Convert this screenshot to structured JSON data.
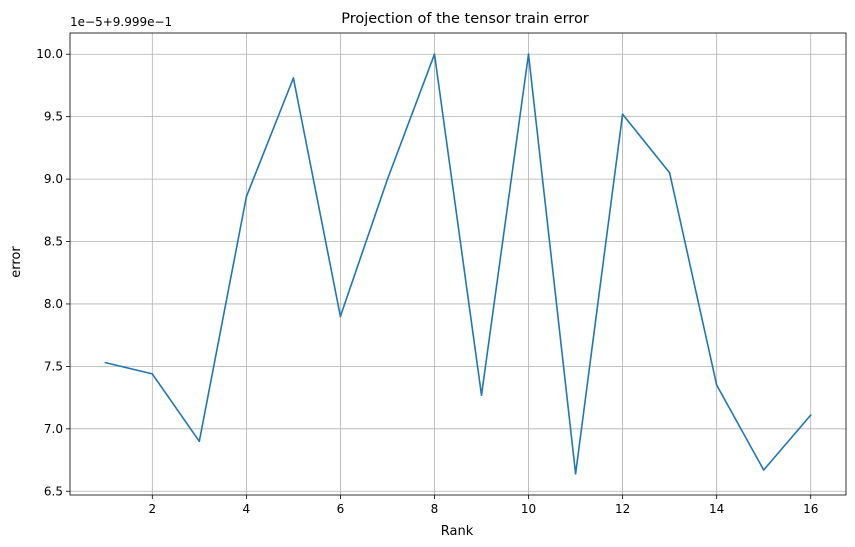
{
  "chart_data": {
    "type": "line",
    "title": "Projection of the tensor train error",
    "xlabel": "Rank",
    "ylabel": "error",
    "offset_text": "1e−5+9.999e−1",
    "x": [
      1,
      2,
      3,
      4,
      5,
      6,
      7,
      8,
      9,
      10,
      11,
      12,
      13,
      14,
      15,
      16
    ],
    "series": [
      {
        "values": [
          7.53,
          7.44,
          6.9,
          8.86,
          9.81,
          7.9,
          9.0,
          10.0,
          7.27,
          10.0,
          6.64,
          9.52,
          9.05,
          7.35,
          6.67,
          7.11
        ],
        "color": "#1f77b4"
      }
    ],
    "xticks": [
      2,
      4,
      6,
      8,
      10,
      12,
      14,
      16
    ],
    "xtick_labels": [
      "2",
      "4",
      "6",
      "8",
      "10",
      "12",
      "14",
      "16"
    ],
    "yticks": [
      6.5,
      7.0,
      7.5,
      8.0,
      8.5,
      9.0,
      9.5,
      10.0
    ],
    "ytick_labels": [
      "6.5",
      "7.0",
      "7.5",
      "8.0",
      "8.5",
      "9.0",
      "9.5",
      "10.0"
    ],
    "xlim": [
      0.25,
      16.75
    ],
    "ylim": [
      6.47,
      10.17
    ],
    "grid": true
  }
}
